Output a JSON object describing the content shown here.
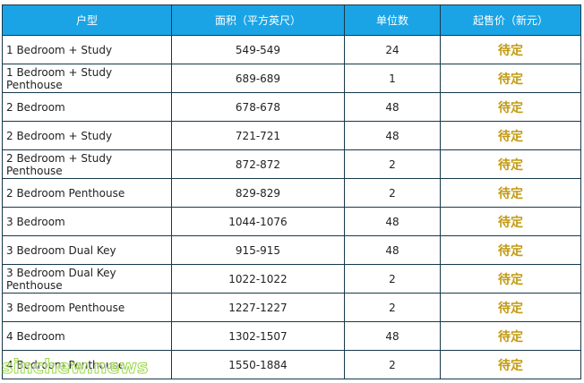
{
  "headers": {
    "type": "户型",
    "area": "面积（平方英尺）",
    "units": "单位数",
    "price": "起售价（新元）"
  },
  "rows": [
    {
      "type": "1 Bedroom + Study",
      "area": "549-549",
      "units": "24",
      "price": "待定"
    },
    {
      "type": "1 Bedroom + Study Penthouse",
      "area": "689-689",
      "units": "1",
      "price": "待定"
    },
    {
      "type": "2 Bedroom",
      "area": "678-678",
      "units": "48",
      "price": "待定"
    },
    {
      "type": "2 Bedroom + Study",
      "area": "721-721",
      "units": "48",
      "price": "待定"
    },
    {
      "type": "2 Bedroom + Study Penthouse",
      "area": "872-872",
      "units": "2",
      "price": "待定"
    },
    {
      "type": "2 Bedroom Penthouse",
      "area": "829-829",
      "units": "2",
      "price": "待定"
    },
    {
      "type": "3 Bedroom",
      "area": "1044-1076",
      "units": "48",
      "price": "待定"
    },
    {
      "type": "3 Bedroom Dual Key",
      "area": "915-915",
      "units": "48",
      "price": "待定"
    },
    {
      "type": "3 Bedroom Dual Key Penthouse",
      "area": "1022-1022",
      "units": "2",
      "price": "待定"
    },
    {
      "type": "3 Bedroom Penthouse",
      "area": "1227-1227",
      "units": "2",
      "price": "待定"
    },
    {
      "type": "4 Bedroom",
      "area": "1302-1507",
      "units": "48",
      "price": "待定"
    },
    {
      "type": "4 Bedroom Penthouse",
      "area": "1550-1884",
      "units": "2",
      "price": "待定"
    }
  ],
  "watermark": "sinchew.news",
  "colors": {
    "header_bg": "#1aa4e6",
    "price_text": "#c29a11",
    "border": "#17384b"
  }
}
